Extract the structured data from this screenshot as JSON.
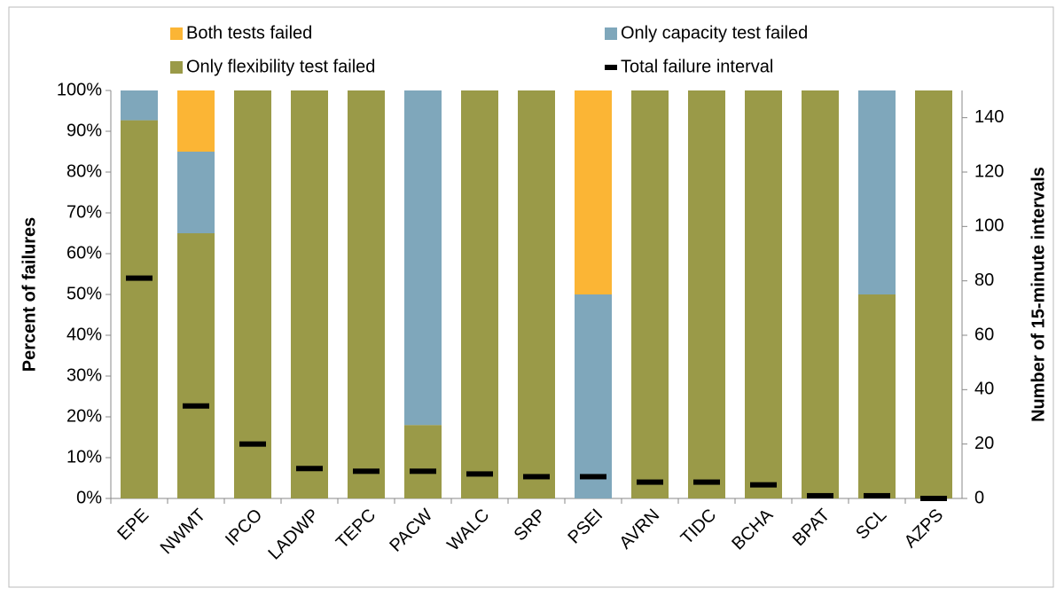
{
  "chart_data": {
    "type": "bar",
    "stacked": true,
    "categories": [
      "EPE",
      "NWMT",
      "IPCO",
      "LADWP",
      "TEPC",
      "PACW",
      "WALC",
      "SRP",
      "PSEI",
      "AVRN",
      "TIDC",
      "BCHA",
      "BPAT",
      "SCL",
      "AZPS"
    ],
    "series": [
      {
        "name": "Only flexibility test failed",
        "color": "#9a9a48",
        "values": [
          92.7,
          65,
          100,
          100,
          100,
          18,
          100,
          100,
          0,
          100,
          100,
          100,
          100,
          50,
          100
        ]
      },
      {
        "name": "Only capacity test failed",
        "color": "#7fa7bb",
        "values": [
          7.3,
          20,
          0,
          0,
          0,
          82,
          0,
          0,
          50,
          0,
          0,
          0,
          0,
          50,
          0
        ]
      },
      {
        "name": "Both tests failed",
        "color": "#fbb535",
        "values": [
          0,
          15,
          0,
          0,
          0,
          0,
          0,
          0,
          50,
          0,
          0,
          0,
          0,
          0,
          0
        ]
      },
      {
        "name": "Total failure interval",
        "color": "#000000",
        "axis": "y2",
        "values": [
          81,
          34,
          20,
          11,
          10,
          10,
          9,
          8,
          8,
          6,
          6,
          5,
          1,
          1,
          0
        ]
      }
    ],
    "ylabel": "Percent of failures",
    "y2label": "Number of 15-minute intervals",
    "ylim": [
      0,
      100
    ],
    "yticks": [
      {
        "value": 0,
        "label": "0%"
      },
      {
        "value": 10,
        "label": "10%"
      },
      {
        "value": 20,
        "label": "20%"
      },
      {
        "value": 30,
        "label": "30%"
      },
      {
        "value": 40,
        "label": "40%"
      },
      {
        "value": 50,
        "label": "50%"
      },
      {
        "value": 60,
        "label": "60%"
      },
      {
        "value": 70,
        "label": "70%"
      },
      {
        "value": 80,
        "label": "80%"
      },
      {
        "value": 90,
        "label": "90%"
      },
      {
        "value": 100,
        "label": "100%"
      }
    ],
    "y2lim": [
      0,
      150
    ],
    "y2ticks": [
      0,
      20,
      40,
      60,
      80,
      100,
      120,
      140
    ],
    "grid": false,
    "legend": "top"
  }
}
